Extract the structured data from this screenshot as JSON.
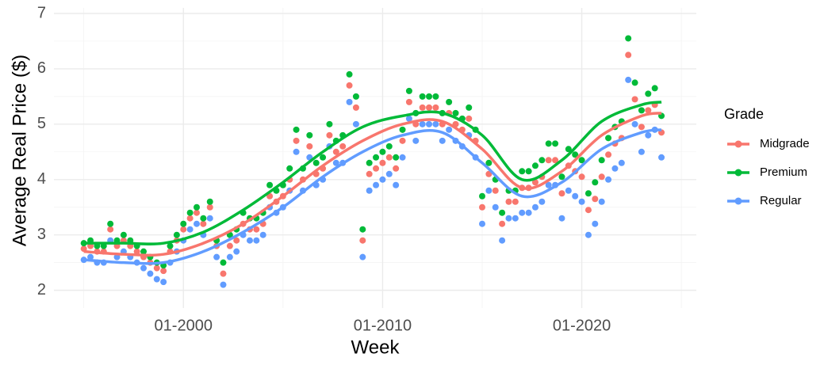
{
  "chart_data": {
    "type": "scatter",
    "x_label": "Week",
    "y_label": "Average Real Price ($)",
    "legend_title": "Grade",
    "legend_position": "right",
    "grid": true,
    "xlim": [
      "1993-07",
      "2025-10"
    ],
    "ylim": [
      1.68,
      7.1
    ],
    "xticks": [
      {
        "value": "2000-01",
        "label": "01-2000"
      },
      {
        "value": "2010-01",
        "label": "01-2010"
      },
      {
        "value": "2020-01",
        "label": "01-2020"
      }
    ],
    "yticks": [
      2,
      3,
      4,
      5,
      6,
      7
    ],
    "x": [
      "1995-01",
      "1995-05",
      "1995-09",
      "1996-01",
      "1996-05",
      "1996-09",
      "1997-01",
      "1997-05",
      "1997-09",
      "1998-01",
      "1998-05",
      "1998-09",
      "1999-01",
      "1999-05",
      "1999-09",
      "2000-01",
      "2000-05",
      "2000-09",
      "2001-01",
      "2001-05",
      "2001-09",
      "2002-01",
      "2002-05",
      "2002-09",
      "2003-01",
      "2003-05",
      "2003-09",
      "2004-01",
      "2004-05",
      "2004-09",
      "2005-01",
      "2005-05",
      "2005-09",
      "2006-01",
      "2006-05",
      "2006-09",
      "2007-01",
      "2007-05",
      "2007-09",
      "2008-01",
      "2008-05",
      "2008-09",
      "2009-01",
      "2009-05",
      "2009-09",
      "2010-01",
      "2010-05",
      "2010-09",
      "2011-01",
      "2011-05",
      "2011-09",
      "2012-01",
      "2012-05",
      "2012-09",
      "2013-01",
      "2013-05",
      "2013-09",
      "2014-01",
      "2014-05",
      "2014-09",
      "2015-01",
      "2015-05",
      "2015-09",
      "2016-01",
      "2016-05",
      "2016-09",
      "2017-01",
      "2017-05",
      "2017-09",
      "2018-01",
      "2018-05",
      "2018-09",
      "2019-01",
      "2019-05",
      "2019-09",
      "2020-01",
      "2020-05",
      "2020-09",
      "2021-01",
      "2021-05",
      "2021-09",
      "2022-01",
      "2022-05",
      "2022-09",
      "2023-01",
      "2023-05",
      "2023-09",
      "2024-01"
    ],
    "smooth_x": [
      "1995-01",
      "1997-01",
      "1999-01",
      "2001-01",
      "2003-01",
      "2005-01",
      "2007-01",
      "2009-01",
      "2011-01",
      "2013-01",
      "2015-01",
      "2017-01",
      "2019-01",
      "2021-01",
      "2023-01",
      "2024-01"
    ],
    "series": [
      {
        "name": "Midgrade",
        "color": "#F8766D",
        "values": [
          2.75,
          2.8,
          2.7,
          2.7,
          3.1,
          2.8,
          2.9,
          2.8,
          2.7,
          2.6,
          2.5,
          2.4,
          2.35,
          2.7,
          2.9,
          3.1,
          3.3,
          3.4,
          3.2,
          3.5,
          2.8,
          2.3,
          2.8,
          2.9,
          3.2,
          3.1,
          3.1,
          3.2,
          3.7,
          3.6,
          3.7,
          4.0,
          4.7,
          4.0,
          4.6,
          4.1,
          4.2,
          4.8,
          4.5,
          4.6,
          5.7,
          5.3,
          2.9,
          4.1,
          4.2,
          4.3,
          4.4,
          4.2,
          4.7,
          5.4,
          5.0,
          5.3,
          5.3,
          5.3,
          5.0,
          5.2,
          5.0,
          4.9,
          5.1,
          4.7,
          3.5,
          4.1,
          3.8,
          3.2,
          3.6,
          3.6,
          3.85,
          3.85,
          3.95,
          4.05,
          4.35,
          4.35,
          3.75,
          4.25,
          4.15,
          4.05,
          3.45,
          3.65,
          4.05,
          4.45,
          4.65,
          4.75,
          6.25,
          5.45,
          4.95,
          5.25,
          5.35,
          4.85
        ],
        "smooth_values": [
          2.7,
          2.65,
          2.65,
          2.85,
          3.2,
          3.7,
          4.25,
          4.7,
          5.0,
          5.05,
          4.55,
          3.85,
          4.15,
          4.8,
          5.15,
          5.2
        ]
      },
      {
        "name": "Premium",
        "color": "#00BA38",
        "values": [
          2.85,
          2.9,
          2.8,
          2.8,
          3.2,
          2.9,
          3.0,
          2.9,
          2.8,
          2.7,
          2.6,
          2.5,
          2.45,
          2.8,
          3.0,
          3.2,
          3.4,
          3.5,
          3.3,
          3.6,
          2.9,
          2.5,
          3.0,
          3.1,
          3.4,
          3.3,
          3.3,
          3.4,
          3.9,
          3.8,
          3.9,
          4.2,
          4.9,
          4.2,
          4.8,
          4.3,
          4.4,
          5.0,
          4.7,
          4.8,
          5.9,
          5.5,
          3.1,
          4.3,
          4.4,
          4.5,
          4.6,
          4.4,
          4.9,
          5.6,
          5.2,
          5.5,
          5.5,
          5.5,
          5.2,
          5.4,
          5.2,
          5.1,
          5.3,
          4.9,
          3.7,
          4.3,
          4.0,
          3.4,
          3.8,
          3.8,
          4.15,
          4.15,
          4.25,
          4.35,
          4.65,
          4.65,
          4.05,
          4.55,
          4.45,
          4.35,
          3.75,
          3.95,
          4.35,
          4.75,
          4.95,
          5.05,
          6.55,
          5.75,
          5.25,
          5.55,
          5.65,
          5.15
        ],
        "smooth_values": [
          2.85,
          2.85,
          2.85,
          3.05,
          3.45,
          3.95,
          4.5,
          4.95,
          5.15,
          5.2,
          4.8,
          4.0,
          4.35,
          5.05,
          5.35,
          5.4
        ]
      },
      {
        "name": "Regular",
        "color": "#619CFF",
        "values": [
          2.55,
          2.6,
          2.5,
          2.5,
          2.9,
          2.6,
          2.7,
          2.6,
          2.5,
          2.4,
          2.3,
          2.2,
          2.15,
          2.5,
          2.7,
          2.9,
          3.1,
          3.2,
          3.0,
          3.3,
          2.6,
          2.1,
          2.6,
          2.7,
          3.0,
          2.9,
          2.9,
          3.0,
          3.5,
          3.4,
          3.5,
          3.8,
          4.5,
          3.8,
          4.4,
          3.9,
          4.0,
          4.6,
          4.3,
          4.3,
          5.4,
          5.0,
          2.6,
          3.8,
          3.9,
          4.0,
          4.1,
          3.9,
          4.4,
          5.1,
          4.7,
          5.0,
          5.0,
          5.0,
          4.7,
          4.9,
          4.7,
          4.6,
          4.8,
          4.4,
          3.2,
          3.8,
          3.5,
          2.9,
          3.3,
          3.3,
          3.4,
          3.4,
          3.5,
          3.6,
          3.9,
          3.9,
          3.3,
          3.8,
          3.7,
          3.6,
          3.0,
          3.2,
          3.6,
          4.0,
          4.2,
          4.3,
          5.8,
          5.0,
          4.5,
          4.8,
          4.9,
          4.4
        ],
        "smooth_values": [
          2.55,
          2.5,
          2.5,
          2.7,
          3.05,
          3.5,
          4.05,
          4.5,
          4.8,
          4.85,
          4.3,
          3.7,
          3.95,
          4.55,
          4.85,
          4.9
        ]
      }
    ]
  }
}
